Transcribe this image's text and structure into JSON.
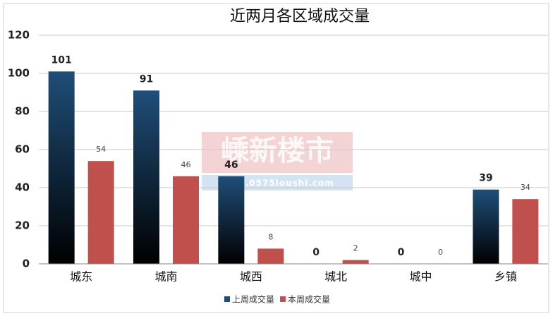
{
  "chart_data": {
    "type": "bar",
    "title": "近两月各区域成交量",
    "categories": [
      "城东",
      "城南",
      "城西",
      "城北",
      "城中",
      "乡镇"
    ],
    "series": [
      {
        "name": "上周成交量",
        "color": "#1f4e79",
        "values": [
          101,
          91,
          46,
          0,
          0,
          39
        ]
      },
      {
        "name": "本周成交量",
        "color": "#c0504d",
        "values": [
          54,
          46,
          8,
          2,
          0,
          34
        ]
      }
    ],
    "ylim": [
      0,
      120
    ],
    "yticks": [
      0,
      20,
      40,
      60,
      80,
      100,
      120
    ],
    "grid": true,
    "legend": "bottom",
    "watermark": {
      "title": "嵊新楼市",
      "url": "www.0575loushi.com"
    }
  }
}
